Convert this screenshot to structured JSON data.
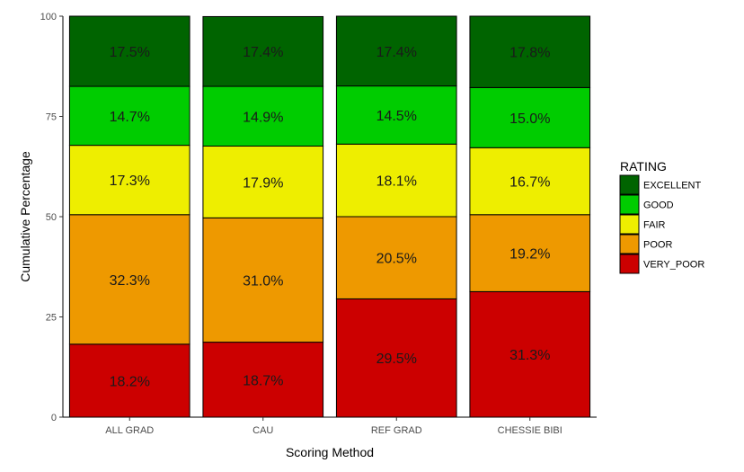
{
  "chart_data": {
    "type": "bar",
    "stacked": true,
    "categories": [
      "ALL GRAD",
      "CAU",
      "REF GRAD",
      "CHESSIE BIBI"
    ],
    "series": [
      {
        "name": "VERY_POOR",
        "color": "#cc0000",
        "values": [
          18.2,
          18.7,
          29.5,
          31.3
        ],
        "labels": [
          "18.2%",
          "18.7%",
          "29.5%",
          "31.3%"
        ]
      },
      {
        "name": "POOR",
        "color": "#ee9900",
        "values": [
          32.3,
          31.0,
          20.5,
          19.2
        ],
        "labels": [
          "32.3%",
          "31.0%",
          "20.5%",
          "19.2%"
        ]
      },
      {
        "name": "FAIR",
        "color": "#eeee00",
        "values": [
          17.3,
          17.9,
          18.1,
          16.7
        ],
        "labels": [
          "17.3%",
          "17.9%",
          "18.1%",
          "16.7%"
        ]
      },
      {
        "name": "GOOD",
        "color": "#00cc00",
        "values": [
          14.7,
          14.9,
          14.5,
          15.0
        ],
        "labels": [
          "14.7%",
          "14.9%",
          "14.5%",
          "15.0%"
        ]
      },
      {
        "name": "EXCELLENT",
        "color": "#006400",
        "values": [
          17.5,
          17.4,
          17.4,
          17.8
        ],
        "labels": [
          "17.5%",
          "17.4%",
          "17.4%",
          "17.8%"
        ]
      }
    ],
    "xlabel": "Scoring Method",
    "ylabel": "Cumulative Percentage",
    "ylim": [
      0,
      100
    ],
    "yticks": [
      0,
      25,
      50,
      75,
      100
    ],
    "ytick_labels": [
      "0",
      "25",
      "50",
      "75",
      "100"
    ],
    "grid": false,
    "legend": {
      "title": "RATING",
      "placement": "right",
      "entries": [
        "EXCELLENT",
        "GOOD",
        "FAIR",
        "POOR",
        "VERY_POOR"
      ]
    }
  }
}
